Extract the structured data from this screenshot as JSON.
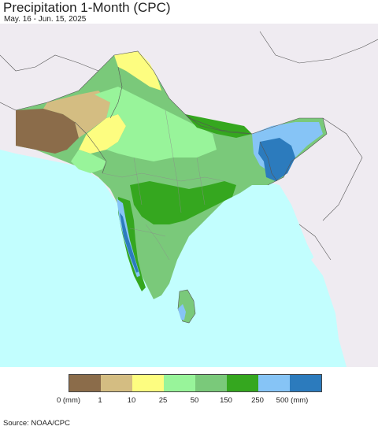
{
  "header": {
    "title": "Precipitation 1-Month (CPC)",
    "subtitle": "May. 16 - Jun. 15, 2025"
  },
  "legend": {
    "colors": [
      "#8b6c4a",
      "#d4bd82",
      "#fdfd80",
      "#98f49a",
      "#7ac97a",
      "#35a71f",
      "#86c4f6",
      "#2c7bbd"
    ],
    "labels": [
      "0 (mm)",
      "1",
      "10",
      "25",
      "50",
      "150",
      "250",
      "500 (mm)"
    ]
  },
  "footer": {
    "source": "Source: NOAA/CPC"
  },
  "map_colors": {
    "ocean": "#c2fefe",
    "outside_land": "#efebf1",
    "border": "#555555"
  }
}
